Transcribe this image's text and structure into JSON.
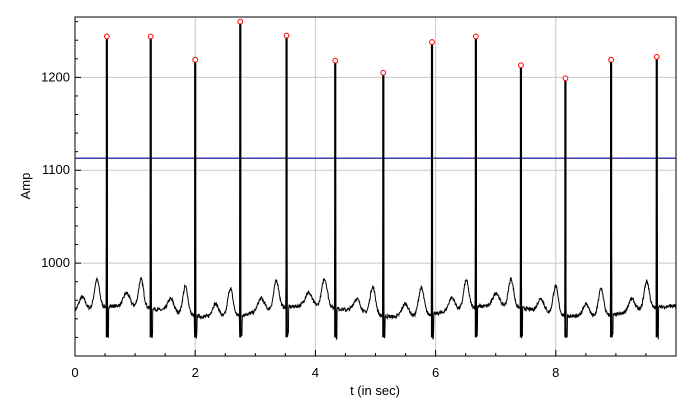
{
  "chart_data": {
    "type": "line",
    "title": "",
    "xlabel": "t (in sec)",
    "ylabel": "Amp",
    "xlim": [
      0,
      10
    ],
    "ylim": [
      900,
      1265
    ],
    "x_ticks": [
      0,
      2,
      4,
      6,
      8
    ],
    "x_tick_labels": [
      "0",
      "2",
      "4",
      "6",
      "8"
    ],
    "y_ticks": [
      1000,
      1100,
      1200
    ],
    "y_tick_labels": [
      "1000",
      "1100",
      "1200"
    ],
    "grid": true,
    "legend": "none",
    "threshold": {
      "y": 1113,
      "color": "#00008b"
    },
    "peaks": {
      "color": "#ff0000",
      "x": [
        0.53,
        1.26,
        2.0,
        2.75,
        3.52,
        4.33,
        5.13,
        5.94,
        6.67,
        7.42,
        8.16,
        8.92,
        9.68
      ],
      "y": [
        1244,
        1244,
        1219,
        1260,
        1245,
        1218,
        1205,
        1238,
        1244,
        1213,
        1199,
        1219,
        1222
      ]
    },
    "series": [
      {
        "color": "#000000",
        "values": []
      }
    ]
  }
}
